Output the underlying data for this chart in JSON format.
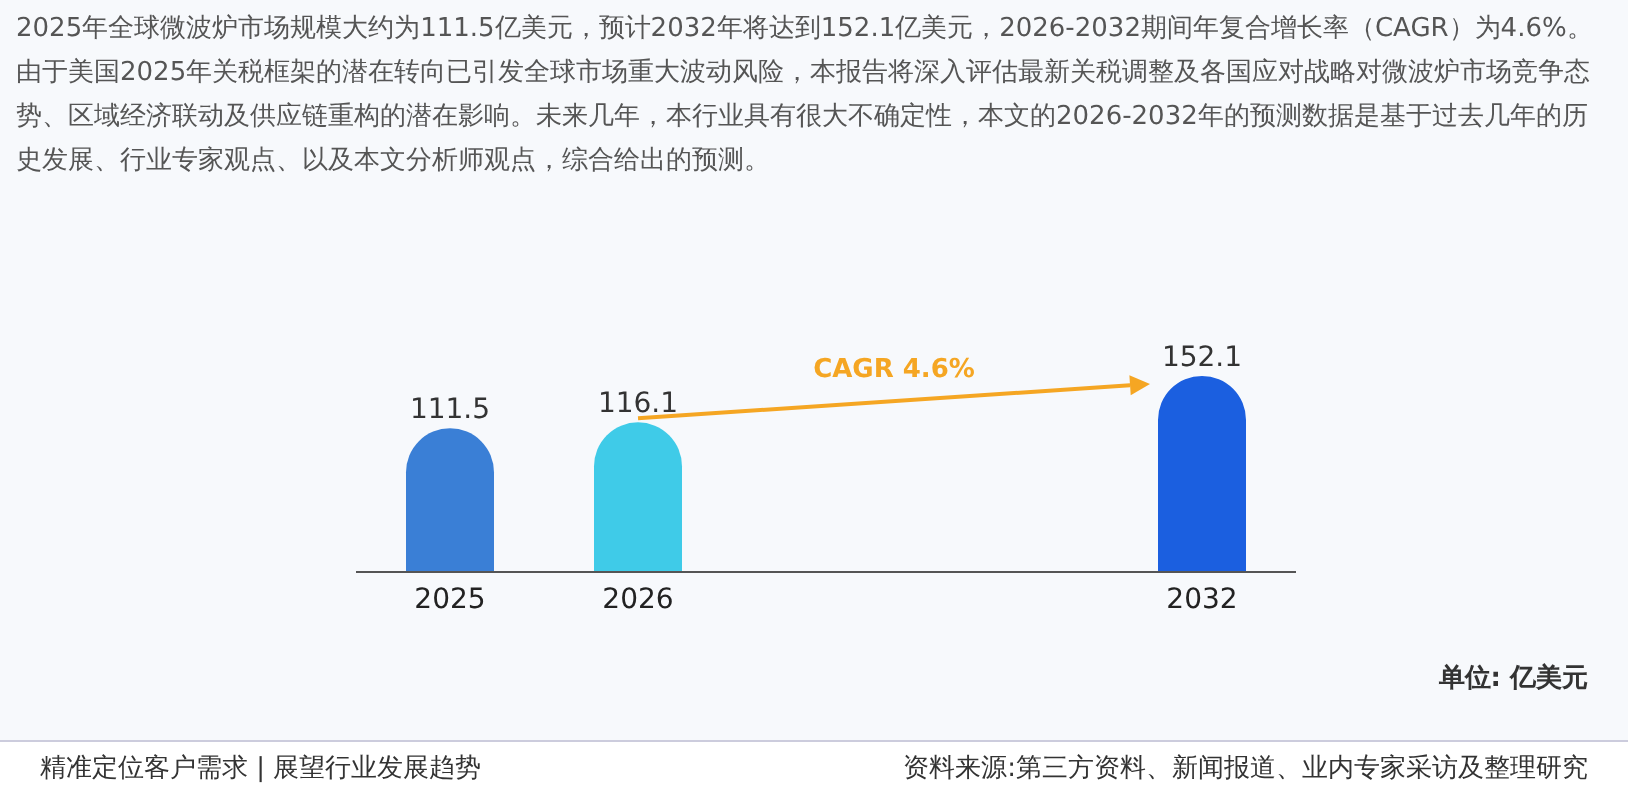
{
  "chart_data": {
    "type": "bar",
    "title": "2025年全球微波炉市场规模大约为111.5亿美元，预计2032年将达到152.1亿美元，2026-2032期间年复合增长率（CAGR）为4.6%。由于美国2025年关税框架的潜在转向已引发全球市场重大波动风险，本报告将深入评估最新关税调整及各国应对战略对微波炉市场竞争态势、区域经济联动及供应链重构的潜在影响。未来几年，本行业具有很大不确定性，本文的2026-2032年的预测数据是基于过去几年的历史发展、行业专家观点、以及本文分析师观点，综合给出的预测。",
    "categories": [
      "2025",
      "2026",
      null,
      null,
      "2032"
    ],
    "values": [
      111.5,
      116.1,
      null,
      null,
      152.1
    ],
    "colors": [
      "#3a7fd6",
      "#3fcbe8",
      null,
      null,
      "#1b5fe0"
    ],
    "data_labels": true,
    "annotations": [
      "单位: 亿美元",
      "精准定位客户需求 | 展望行业发展趋势",
      "资料来源:第三方资料、新闻报道、业内专家采访及整理研究",
      "CAGR 4.6%"
    ]
  }
}
